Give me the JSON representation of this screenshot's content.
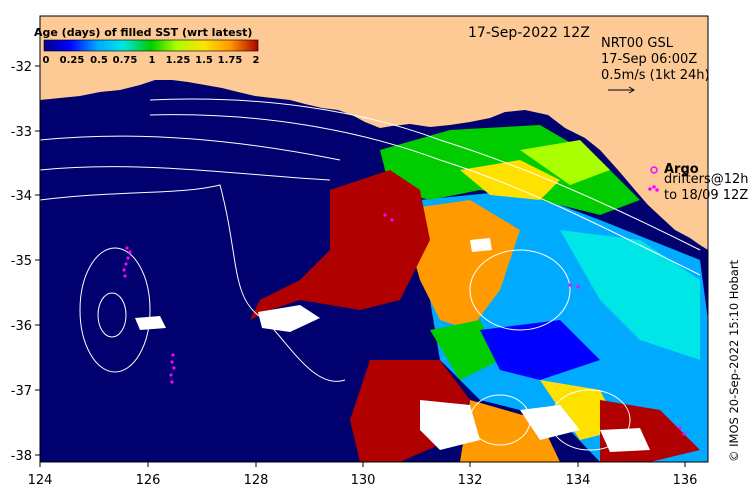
{
  "map": {
    "date_label": "17-Sep-2022 12Z",
    "product": {
      "line1": "NRT00 GSL",
      "line2": "17-Sep 06:00Z",
      "line3": "0.5m/s (1kt 24h)"
    },
    "colorbar": {
      "title": "Age (days) of filled SST (wrt latest)",
      "tick_labels": [
        "0",
        "0.25",
        "0.5",
        "0.75",
        "1",
        "1.25",
        "1.5",
        "1.75",
        "2"
      ],
      "colors": [
        "#00008b",
        "#0000ff",
        "#00aaff",
        "#00e5e5",
        "#00cc00",
        "#aaff00",
        "#ffe100",
        "#ff9a00",
        "#b00000"
      ]
    },
    "legend": {
      "argo_label": "Argo",
      "drifters_line1": "drifters@12h",
      "drifters_line2": "to 18/09 12Z"
    },
    "x_ticks": [
      "124",
      "126",
      "128",
      "130",
      "132",
      "134",
      "136"
    ],
    "y_ticks": [
      "-32",
      "-33",
      "-34",
      "-35",
      "-36",
      "-37",
      "-38"
    ],
    "credit": "© IMOS 20-Sep-2022 15:10 Hobart",
    "colors": {
      "land": "#fdc994",
      "ocean_masked": "#00006e",
      "argo": "#ff00ff",
      "contour": "#ffffff"
    }
  }
}
